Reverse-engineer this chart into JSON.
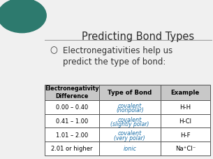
{
  "title": "Predicting Bond Types",
  "subtitle": "Electronegativities help us\npredict the type of bond:",
  "bullet_char": "○",
  "bg_color": "#f0f0f0",
  "col_headers": [
    "Electronegativity\nDifference",
    "Type of Bond",
    "Example"
  ],
  "rows": [
    {
      "diff": "0.00 – 0.40",
      "bond_line1": "covalent",
      "bond_line2": "(nonpolar)",
      "example": "H-H"
    },
    {
      "diff": "0.41 – 1.00",
      "bond_line1": "covalent",
      "bond_line2": "(slightly polar)",
      "example": "H-Cl"
    },
    {
      "diff": "1.01 – 2.00",
      "bond_line1": "covalent",
      "bond_line2": "(very polar)",
      "example": "H-F"
    },
    {
      "diff": "2.01 or higher",
      "bond_line1": "ionic",
      "bond_line2": "",
      "example": "Na⁺Cl⁻"
    }
  ],
  "header_bg": "#c8c8c8",
  "row_bg": "#ffffff",
  "bond_color": "#1a6fa8",
  "diff_color": "#000000",
  "example_color": "#000000",
  "header_color": "#000000",
  "table_border_color": "#555555",
  "accent_circle_color": "#2d7a6e",
  "title_color": "#2c2c2c",
  "subtitle_color": "#333333",
  "line_color": "#999999"
}
